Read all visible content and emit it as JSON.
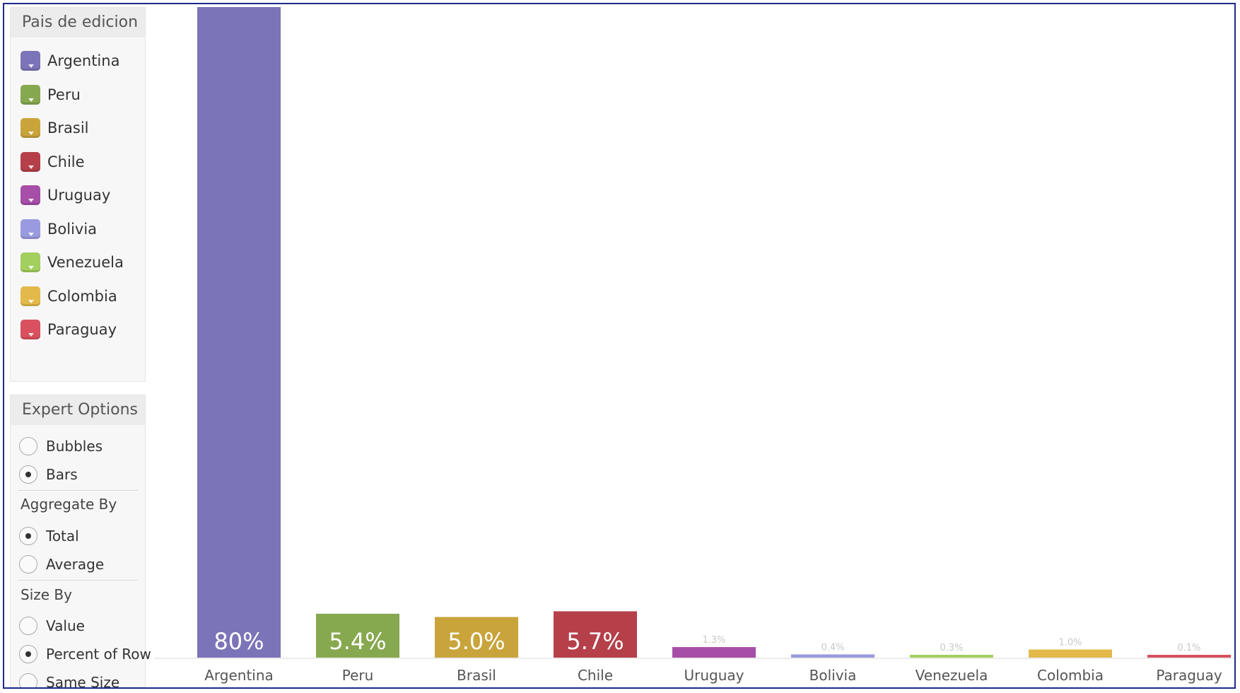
{
  "legend": {
    "title": "Pais de edicion",
    "items": [
      {
        "label": "Argentina",
        "color": "#7b74b8"
      },
      {
        "label": "Peru",
        "color": "#86a84f"
      },
      {
        "label": "Brasil",
        "color": "#c9a43b"
      },
      {
        "label": "Chile",
        "color": "#b5404a"
      },
      {
        "label": "Uruguay",
        "color": "#a64ea8"
      },
      {
        "label": "Bolivia",
        "color": "#9a9ae0"
      },
      {
        "label": "Venezuela",
        "color": "#a3cf5e"
      },
      {
        "label": "Colombia",
        "color": "#e3b94b"
      },
      {
        "label": "Paraguay",
        "color": "#d9505e"
      }
    ]
  },
  "expert_options": {
    "title": "Expert Options",
    "chart_kind": {
      "options": [
        {
          "label": "Bubbles",
          "checked": false
        },
        {
          "label": "Bars",
          "checked": true
        }
      ]
    },
    "aggregate_by": {
      "title": "Aggregate By",
      "options": [
        {
          "label": "Total",
          "checked": true
        },
        {
          "label": "Average",
          "checked": false
        }
      ]
    },
    "size_by": {
      "title": "Size By",
      "options": [
        {
          "label": "Value",
          "checked": false
        },
        {
          "label": "Percent of Row",
          "checked": true
        },
        {
          "label": "Same Size",
          "checked": false
        }
      ]
    }
  },
  "chart_data": {
    "type": "bar",
    "categories": [
      "Argentina",
      "Peru",
      "Brasil",
      "Chile",
      "Uruguay",
      "Bolivia",
      "Venezuela",
      "Colombia",
      "Paraguay"
    ],
    "values": [
      80,
      5.4,
      5.0,
      5.7,
      1.3,
      0.4,
      0.3,
      1.0,
      0.1
    ],
    "data_labels": [
      "80%",
      "5.4%",
      "5.0%",
      "5.7%",
      "1.3%",
      "0.4%",
      "0.3%",
      "1.0%",
      "0.1%"
    ],
    "colors": [
      "#7b74b8",
      "#86a84f",
      "#c9a43b",
      "#b5404a",
      "#a64ea8",
      "#9a9ae0",
      "#a3cf5e",
      "#e3b94b",
      "#d9505e"
    ],
    "ylim": [
      0,
      80
    ],
    "grid": false,
    "legend_placement": "left"
  }
}
